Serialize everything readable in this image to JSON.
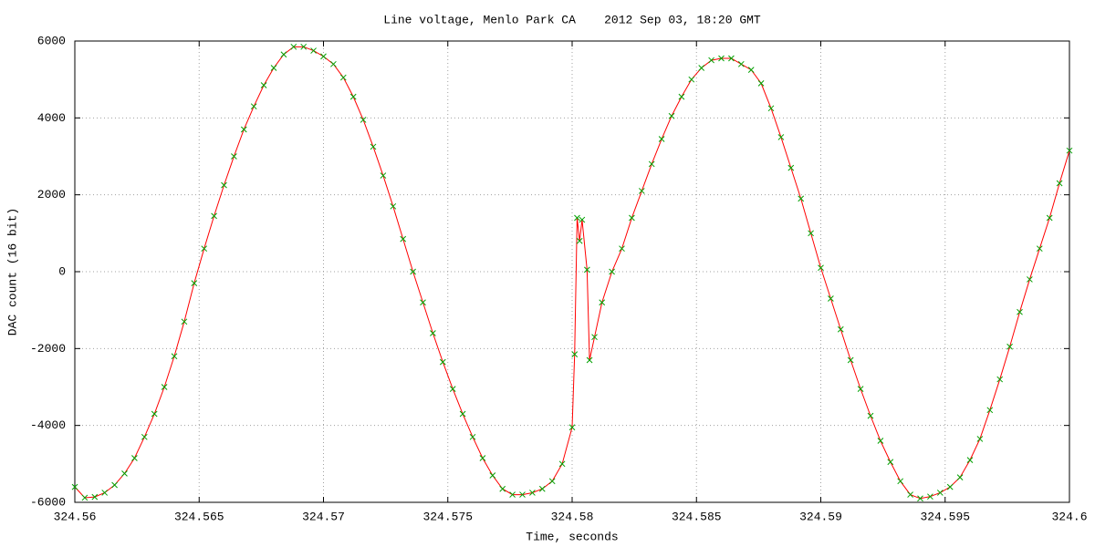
{
  "chart_data": {
    "type": "line",
    "title": "Line voltage, Menlo Park CA    2012 Sep 03, 18:20 GMT",
    "x_label": "Time, seconds",
    "y_label": "DAC count (16 bit)",
    "x": [
      324.56,
      324.5604,
      324.5608,
      324.5612,
      324.5616,
      324.562,
      324.5624,
      324.5628,
      324.5632,
      324.5636,
      324.564,
      324.5644,
      324.5648,
      324.5652,
      324.5656,
      324.566,
      324.5664,
      324.5668,
      324.5672,
      324.5676,
      324.568,
      324.5684,
      324.5688,
      324.5692,
      324.5696,
      324.57,
      324.5704,
      324.5708,
      324.5712,
      324.5716,
      324.572,
      324.5724,
      324.5728,
      324.5732,
      324.5736,
      324.574,
      324.5744,
      324.5748,
      324.5752,
      324.5756,
      324.576,
      324.5764,
      324.5768,
      324.5772,
      324.5776,
      324.578,
      324.5784,
      324.5788,
      324.5792,
      324.5796,
      324.58,
      324.5801,
      324.5802,
      324.5803,
      324.5804,
      324.5806,
      324.5807,
      324.5809,
      324.5812,
      324.5816,
      324.582,
      324.5824,
      324.5828,
      324.5832,
      324.5836,
      324.584,
      324.5844,
      324.5848,
      324.5852,
      324.5856,
      324.586,
      324.5864,
      324.5868,
      324.5872,
      324.5876,
      324.588,
      324.5884,
      324.5888,
      324.5892,
      324.5896,
      324.59,
      324.5904,
      324.5908,
      324.5912,
      324.5916,
      324.592,
      324.5924,
      324.5928,
      324.5932,
      324.5936,
      324.594,
      324.5944,
      324.5948,
      324.5952,
      324.5956,
      324.596,
      324.5964,
      324.5968,
      324.5972,
      324.5976,
      324.598,
      324.5984,
      324.5988,
      324.5992,
      324.5996,
      324.6
    ],
    "series": [
      {
        "color": "#ff0000",
        "marker_color": "#00a000",
        "values": [
          -5600,
          -5880,
          -5860,
          -5750,
          -5550,
          -5250,
          -4850,
          -4300,
          -3700,
          -3000,
          -2200,
          -1300,
          -300,
          600,
          1450,
          2250,
          3000,
          3700,
          4300,
          4850,
          5300,
          5650,
          5850,
          5850,
          5750,
          5600,
          5400,
          5050,
          4550,
          3950,
          3250,
          2500,
          1700,
          850,
          0,
          -800,
          -1600,
          -2350,
          -3050,
          -3700,
          -4300,
          -4850,
          -5300,
          -5650,
          -5800,
          -5800,
          -5750,
          -5650,
          -5450,
          -5000,
          -4050,
          -2150,
          1400,
          800,
          1350,
          50,
          -2300,
          -1700,
          -800,
          0,
          600,
          1400,
          2100,
          2800,
          3450,
          4050,
          4550,
          5000,
          5300,
          5500,
          5550,
          5550,
          5400,
          5250,
          4900,
          4250,
          3500,
          2700,
          1900,
          1000,
          100,
          -700,
          -1500,
          -2300,
          -3050,
          -3750,
          -4400,
          -4950,
          -5450,
          -5800,
          -5900,
          -5850,
          -5750,
          -5600,
          -5350,
          -4900,
          -4350,
          -3600,
          -2800,
          -1950,
          -1050,
          -200,
          600,
          1400,
          2300,
          3150
        ]
      }
    ],
    "xlim": [
      324.56,
      324.6
    ],
    "xticks": [
      324.56,
      324.565,
      324.57,
      324.575,
      324.58,
      324.585,
      324.59,
      324.595,
      324.6
    ],
    "ylim": [
      -6000,
      6000
    ],
    "yticks": [
      -6000,
      -4000,
      -2000,
      0,
      2000,
      4000,
      6000
    ],
    "grid": true
  }
}
